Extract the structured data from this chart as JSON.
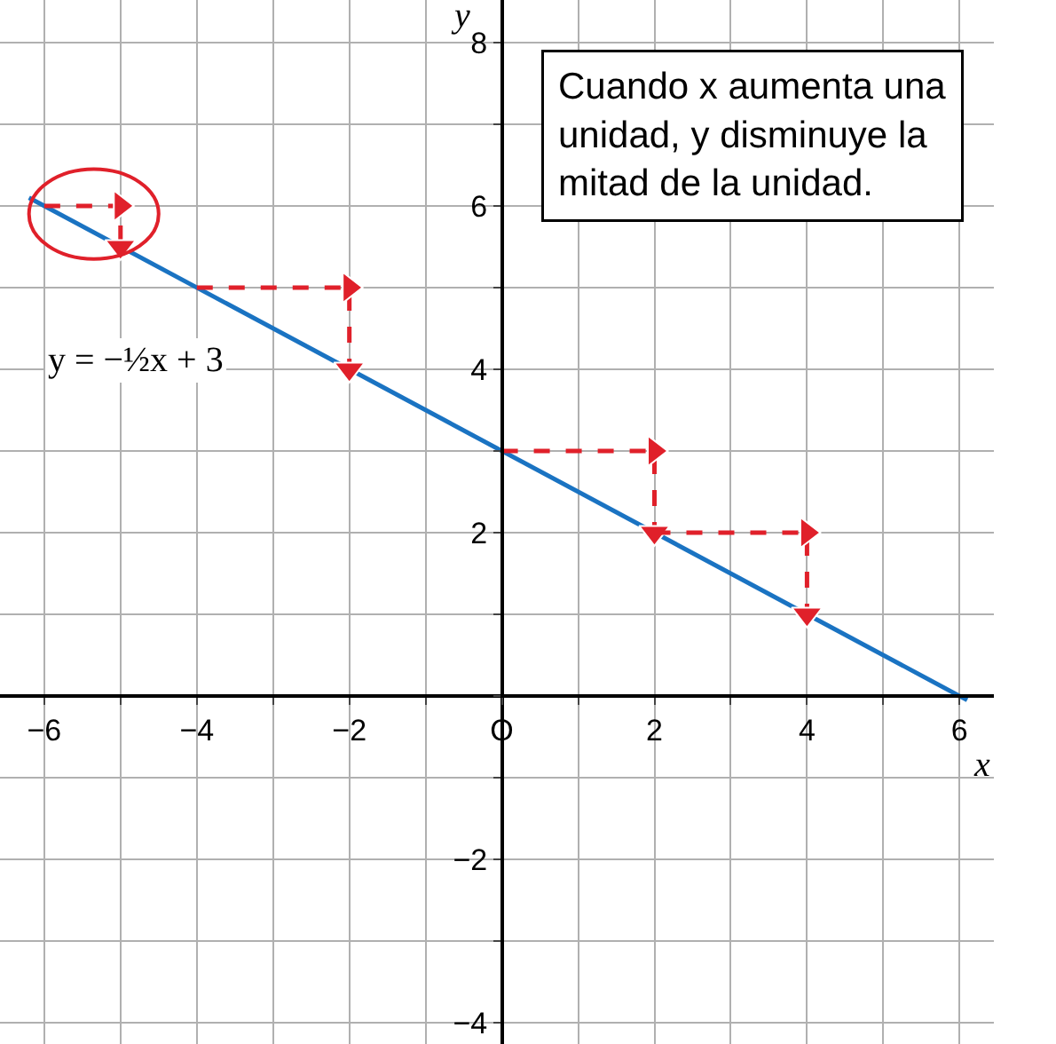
{
  "chart_data": {
    "type": "line",
    "xlabel": "x",
    "ylabel": "y",
    "xlim": [
      -6.58,
      6.45
    ],
    "ylim": [
      -4.26,
      8.52
    ],
    "xticks": [
      {
        "value": -6,
        "label": "−6"
      },
      {
        "value": -5,
        "label": null
      },
      {
        "value": -4,
        "label": "−4"
      },
      {
        "value": -3,
        "label": null
      },
      {
        "value": -2,
        "label": "−2"
      },
      {
        "value": -1,
        "label": null
      },
      {
        "value": 0,
        "label": "O"
      },
      {
        "value": 1,
        "label": null
      },
      2,
      {
        "value": 3,
        "label": null
      },
      4,
      {
        "value": 5,
        "label": null
      },
      6
    ],
    "yticks": [
      {
        "value": -4,
        "label": "−4"
      },
      {
        "value": -3,
        "label": null
      },
      {
        "value": -2,
        "label": "−2"
      },
      {
        "value": -1,
        "label": null
      },
      {
        "value": 0,
        "label": null
      },
      {
        "value": 1,
        "label": null
      },
      2,
      {
        "value": 3,
        "label": null
      },
      4,
      {
        "value": 5,
        "label": null
      },
      6,
      {
        "value": 7,
        "label": null
      },
      8
    ],
    "grid": true,
    "marker": "none",
    "series": [
      {
        "color": "#1a73c2",
        "line_style": "solid",
        "x": [
          -6.2,
          6.1
        ],
        "values": [
          6.1,
          -0.05
        ]
      },
      {
        "color": "#e0202a",
        "line_style": "dashed",
        "marker": "triangle",
        "x": [
          -6,
          -5,
          -5
        ],
        "values": [
          6,
          6,
          5.5
        ]
      },
      {
        "color": "#e0202a",
        "line_style": "dashed",
        "marker": "triangle",
        "x": [
          -4,
          -2,
          -2
        ],
        "values": [
          5,
          5,
          4
        ]
      },
      {
        "color": "#e0202a",
        "line_style": "dashed",
        "marker": "triangle",
        "x": [
          0,
          2,
          2
        ],
        "values": [
          3,
          3,
          2
        ]
      },
      {
        "color": "#e0202a",
        "line_style": "dashed",
        "marker": "triangle",
        "x": [
          2,
          4,
          4
        ],
        "values": [
          2,
          2,
          1
        ]
      }
    ],
    "annotations": [
      "Cuando x aumenta una\nunidad, y disminuye la\nmitad de la unidad.",
      "y = −½x + 3"
    ]
  }
}
